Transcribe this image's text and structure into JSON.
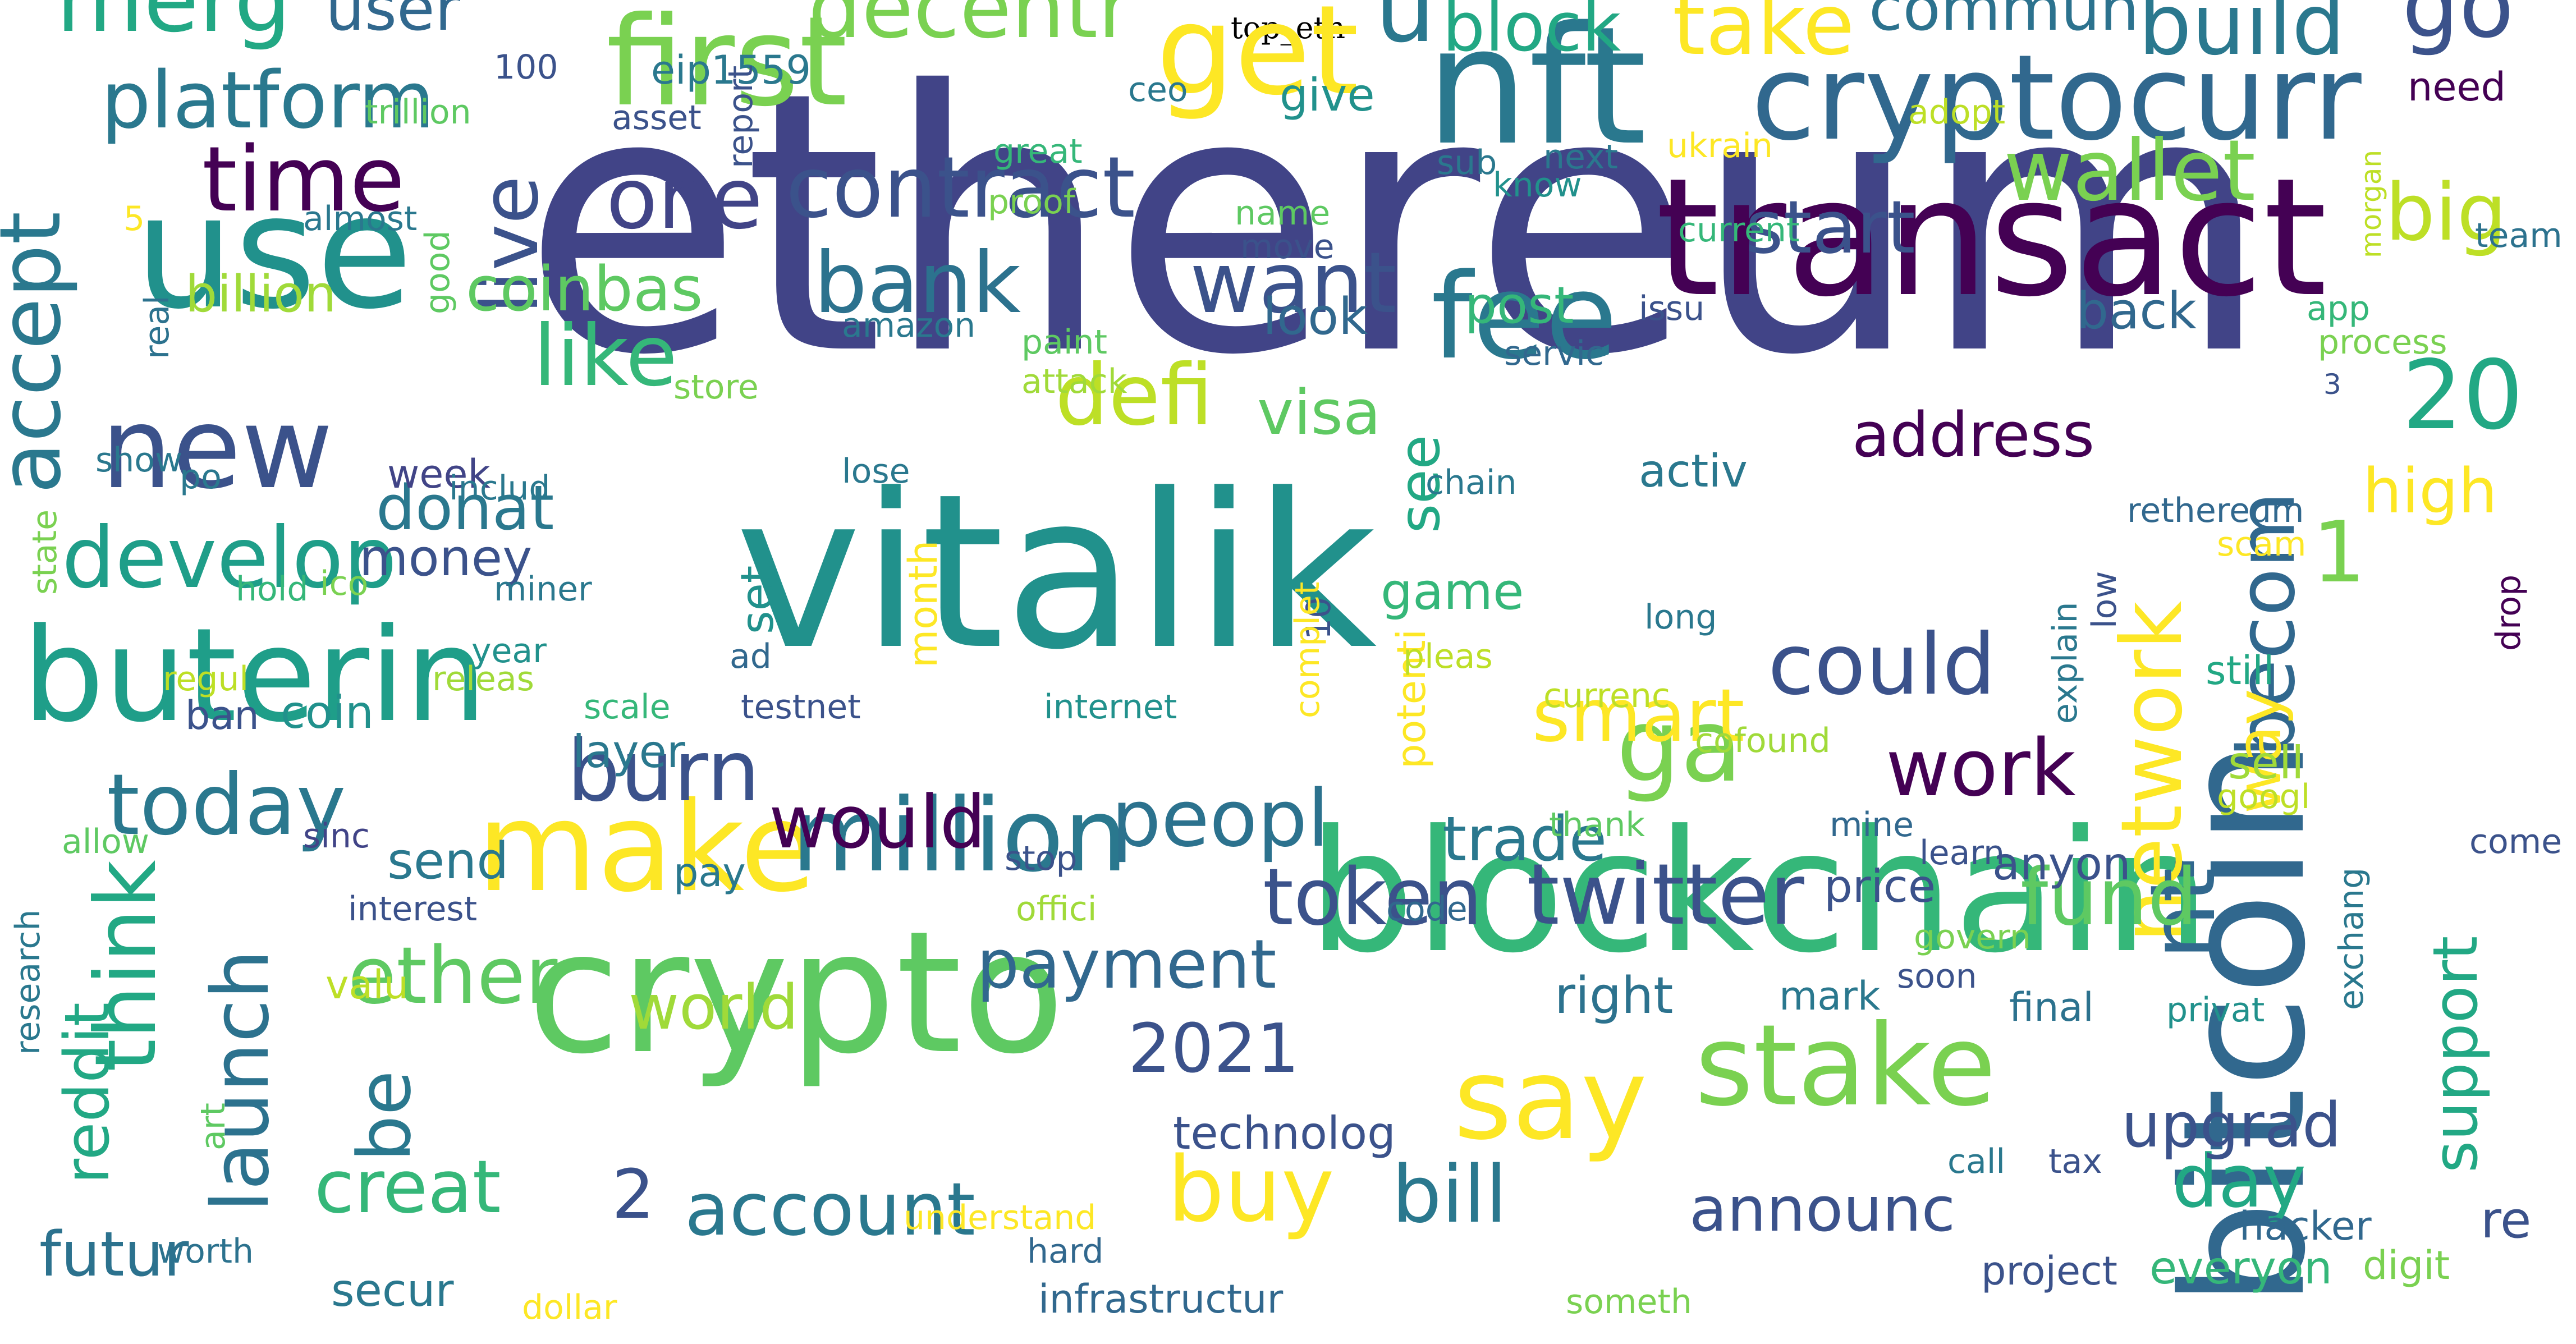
{
  "title": "top_eth",
  "palette": "viridis",
  "words": [
    {
      "text": "ethereum",
      "color": "#414487"
    },
    {
      "text": "vitalik",
      "color": "#21918c"
    },
    {
      "text": "transact",
      "color": "#440154"
    },
    {
      "text": "blockchain",
      "color": "#35b779"
    },
    {
      "text": "bitcoin",
      "color": "#31688e"
    },
    {
      "text": "nft",
      "color": "#2a788e"
    },
    {
      "text": "crypto",
      "color": "#5ec962"
    },
    {
      "text": "use",
      "color": "#21918c"
    },
    {
      "text": "buterin",
      "color": "#1f9e89"
    },
    {
      "text": "cryptocurr",
      "color": "#31688e"
    },
    {
      "text": "make",
      "color": "#fde725"
    },
    {
      "text": "first",
      "color": "#7ad151"
    },
    {
      "text": "get",
      "color": "#fde725"
    },
    {
      "text": "fee",
      "color": "#2a788e"
    },
    {
      "text": "new",
      "color": "#3b528b"
    },
    {
      "text": "say",
      "color": "#fde725"
    },
    {
      "text": "stake",
      "color": "#7ad151"
    },
    {
      "text": "million",
      "color": "#2a788e"
    },
    {
      "text": "merg",
      "color": "#22a884"
    },
    {
      "text": "ga",
      "color": "#7ad151"
    },
    {
      "text": "contract",
      "color": "#3b528b"
    },
    {
      "text": "one",
      "color": "#414487"
    },
    {
      "text": "platform",
      "color": "#2a788e"
    },
    {
      "text": "decentr",
      "color": "#7ad151"
    },
    {
      "text": "u",
      "color": "#2a788e"
    },
    {
      "text": "build",
      "color": "#2a788e"
    },
    {
      "text": "go",
      "color": "#3b528b"
    },
    {
      "text": "time",
      "color": "#440154"
    },
    {
      "text": "live",
      "color": "#3b528b"
    },
    {
      "text": "wallet",
      "color": "#7ad151"
    },
    {
      "text": "big",
      "color": "#bddf26"
    },
    {
      "text": "take",
      "color": "#fde725"
    },
    {
      "text": "commun",
      "color": "#2c728e"
    },
    {
      "text": "block",
      "color": "#22a884"
    },
    {
      "text": "user",
      "color": "#31688e"
    },
    {
      "text": "accept",
      "color": "#2a788e"
    },
    {
      "text": "bank",
      "color": "#2c728e"
    },
    {
      "text": "want",
      "color": "#3b528b"
    },
    {
      "text": "start",
      "color": "#3b528b"
    },
    {
      "text": "20",
      "color": "#22a884"
    },
    {
      "text": "like",
      "color": "#35b779"
    },
    {
      "text": "coinbas",
      "color": "#5ec962"
    },
    {
      "text": "billion",
      "color": "#a0da39"
    },
    {
      "text": "defi",
      "color": "#bddf26"
    },
    {
      "text": "visa",
      "color": "#5ec962"
    },
    {
      "text": "address",
      "color": "#440154"
    },
    {
      "text": "develop",
      "color": "#1f9e89"
    },
    {
      "text": "today",
      "color": "#2a788e"
    },
    {
      "text": "could",
      "color": "#3b528b"
    },
    {
      "text": "work",
      "color": "#440154"
    },
    {
      "text": "network",
      "color": "#fde725"
    },
    {
      "text": "nt",
      "color": "#31688e"
    },
    {
      "text": "becom",
      "color": "#31688e"
    },
    {
      "text": "1",
      "color": "#7ad151"
    },
    {
      "text": "high",
      "color": "#fde725"
    },
    {
      "text": "smart",
      "color": "#fde725"
    },
    {
      "text": "burn",
      "color": "#3b528b"
    },
    {
      "text": "would",
      "color": "#440154"
    },
    {
      "text": "peopl",
      "color": "#2c728e"
    },
    {
      "text": "trade",
      "color": "#2a788e"
    },
    {
      "text": "twitter",
      "color": "#3b528b"
    },
    {
      "text": "fund",
      "color": "#5ec962"
    },
    {
      "text": "token",
      "color": "#3b528b"
    },
    {
      "text": "think",
      "color": "#22a884"
    },
    {
      "text": "launch",
      "color": "#2c728e"
    },
    {
      "text": "ether",
      "color": "#5ec962"
    },
    {
      "text": "world",
      "color": "#a0da39"
    },
    {
      "text": "payment",
      "color": "#31688e"
    },
    {
      "text": "2021",
      "color": "#3b528b"
    },
    {
      "text": "be",
      "color": "#2a788e"
    },
    {
      "text": "creat",
      "color": "#35b779"
    },
    {
      "text": "2",
      "color": "#3b528b"
    },
    {
      "text": "account",
      "color": "#2a788e"
    },
    {
      "text": "buy",
      "color": "#fde725"
    },
    {
      "text": "bill",
      "color": "#2a788e"
    },
    {
      "text": "announc",
      "color": "#3b528b"
    },
    {
      "text": "day",
      "color": "#22a884"
    },
    {
      "text": "upgrad",
      "color": "#3b528b"
    },
    {
      "text": "support",
      "color": "#22a884"
    },
    {
      "text": "futur",
      "color": "#2c728e"
    },
    {
      "text": "reddit",
      "color": "#22a884"
    },
    {
      "text": "donat",
      "color": "#2a788e"
    },
    {
      "text": "money",
      "color": "#3b528b"
    },
    {
      "text": "week",
      "color": "#414487"
    },
    {
      "text": "send",
      "color": "#2a788e"
    },
    {
      "text": "coin",
      "color": "#21918c"
    },
    {
      "text": "layer",
      "color": "#2a788e"
    },
    {
      "text": "see",
      "color": "#22a884"
    },
    {
      "text": "post",
      "color": "#35b779"
    },
    {
      "text": "look",
      "color": "#31688e"
    },
    {
      "text": "back",
      "color": "#31688e"
    },
    {
      "text": "activ",
      "color": "#2a788e"
    },
    {
      "text": "game",
      "color": "#35b779"
    },
    {
      "text": "month",
      "color": "#fde725"
    },
    {
      "text": "technolog",
      "color": "#3b528b"
    },
    {
      "text": "way",
      "color": "#fde725"
    },
    {
      "text": "sell",
      "color": "#a0da39"
    },
    {
      "text": "price",
      "color": "#3b528b"
    },
    {
      "text": "anyon",
      "color": "#3b528b"
    },
    {
      "text": "right",
      "color": "#2c728e"
    },
    {
      "text": "mark",
      "color": "#2a788e"
    },
    {
      "text": "everyon",
      "color": "#35b779"
    },
    {
      "text": "project",
      "color": "#3b528b"
    },
    {
      "text": "digit",
      "color": "#7ad151"
    },
    {
      "text": "re",
      "color": "#3b528b"
    },
    {
      "text": "hacker",
      "color": "#31688e"
    },
    {
      "text": "understand",
      "color": "#fde725"
    },
    {
      "text": "hard",
      "color": "#31688e"
    },
    {
      "text": "infrastructur",
      "color": "#31688e"
    },
    {
      "text": "someth",
      "color": "#7ad151"
    },
    {
      "text": "dollar",
      "color": "#fde725"
    },
    {
      "text": "secur",
      "color": "#2a788e"
    },
    {
      "text": "worth",
      "color": "#2c728e"
    },
    {
      "text": "art",
      "color": "#5ec962"
    },
    {
      "text": "valu",
      "color": "#bddf26"
    },
    {
      "text": "research",
      "color": "#2a788e"
    },
    {
      "text": "interest",
      "color": "#3b528b"
    },
    {
      "text": "allow",
      "color": "#5ec962"
    },
    {
      "text": "sinc",
      "color": "#414487"
    },
    {
      "text": "stop",
      "color": "#3b528b"
    },
    {
      "text": "offici",
      "color": "#a0da39"
    },
    {
      "text": "code",
      "color": "#31688e"
    },
    {
      "text": "pay",
      "color": "#2a788e"
    },
    {
      "text": "ban",
      "color": "#3b528b"
    },
    {
      "text": "regul",
      "color": "#bddf26"
    },
    {
      "text": "releas",
      "color": "#a0da39"
    },
    {
      "text": "scale",
      "color": "#35b779"
    },
    {
      "text": "testnet",
      "color": "#3b528b"
    },
    {
      "text": "internet",
      "color": "#21918c"
    },
    {
      "text": "currenc",
      "color": "#bddf26"
    },
    {
      "text": "thank",
      "color": "#5ec962"
    },
    {
      "text": "cofound",
      "color": "#a0da39"
    },
    {
      "text": "mine",
      "color": "#31688e"
    },
    {
      "text": "learn",
      "color": "#3b528b"
    },
    {
      "text": "govern",
      "color": "#7ad151"
    },
    {
      "text": "soon",
      "color": "#3b528b"
    },
    {
      "text": "final",
      "color": "#2c728e"
    },
    {
      "text": "privat",
      "color": "#21918c"
    },
    {
      "text": "exchang",
      "color": "#2a788e"
    },
    {
      "text": "call",
      "color": "#2a788e"
    },
    {
      "text": "tax",
      "color": "#3b528b"
    },
    {
      "text": "googl",
      "color": "#bddf26"
    },
    {
      "text": "still",
      "color": "#22a884"
    },
    {
      "text": "drop",
      "color": "#440154"
    },
    {
      "text": "low",
      "color": "#3b528b"
    },
    {
      "text": "explain",
      "color": "#2a788e"
    },
    {
      "text": "scam",
      "color": "#fde725"
    },
    {
      "text": "come",
      "color": "#3b528b"
    },
    {
      "text": "team",
      "color": "#2c728e"
    },
    {
      "text": "process",
      "color": "#7ad151"
    },
    {
      "text": "3",
      "color": "#3b528b"
    },
    {
      "text": "app",
      "color": "#35b779"
    },
    {
      "text": "morgan",
      "color": "#bddf26"
    },
    {
      "text": "need",
      "color": "#440154"
    },
    {
      "text": "adopt",
      "color": "#bddf26"
    },
    {
      "text": "rethereum",
      "color": "#31688e"
    },
    {
      "text": "chain",
      "color": "#2a788e"
    },
    {
      "text": "lose",
      "color": "#2a788e"
    },
    {
      "text": "servic",
      "color": "#31688e"
    },
    {
      "text": "issu",
      "color": "#3b528b"
    },
    {
      "text": "current",
      "color": "#35b779"
    },
    {
      "text": "ukrain",
      "color": "#fde725"
    },
    {
      "text": "know",
      "color": "#21918c"
    },
    {
      "text": "sub",
      "color": "#2a788e"
    },
    {
      "text": "next",
      "color": "#2a788e"
    },
    {
      "text": "give",
      "color": "#21918c"
    },
    {
      "text": "ceo",
      "color": "#2a788e"
    },
    {
      "text": "great",
      "color": "#35b779"
    },
    {
      "text": "proof",
      "color": "#7ad151"
    },
    {
      "text": "name",
      "color": "#5ec962"
    },
    {
      "text": "move",
      "color": "#3b528b"
    },
    {
      "text": "paint",
      "color": "#5ec962"
    },
    {
      "text": "attack",
      "color": "#a0da39"
    },
    {
      "text": "store",
      "color": "#7ad151"
    },
    {
      "text": "amazon",
      "color": "#2a788e"
    },
    {
      "text": "100",
      "color": "#3b528b"
    },
    {
      "text": "eip1559",
      "color": "#2a788e"
    },
    {
      "text": "asset",
      "color": "#3b528b"
    },
    {
      "text": "trillion",
      "color": "#5ec962"
    },
    {
      "text": "report",
      "color": "#3b528b"
    },
    {
      "text": "5",
      "color": "#fde725"
    },
    {
      "text": "almost",
      "color": "#2a788e"
    },
    {
      "text": "good",
      "color": "#5ec962"
    },
    {
      "text": "real",
      "color": "#2c728e"
    },
    {
      "text": "show",
      "color": "#2a788e"
    },
    {
      "text": "po",
      "color": "#2a788e"
    },
    {
      "text": "includ",
      "color": "#2a788e"
    },
    {
      "text": "state",
      "color": "#7ad151"
    },
    {
      "text": "hold",
      "color": "#35b779"
    },
    {
      "text": "miner",
      "color": "#2a788e"
    },
    {
      "text": "ico",
      "color": "#7ad151"
    },
    {
      "text": "year",
      "color": "#21918c"
    },
    {
      "text": "set",
      "color": "#21918c"
    },
    {
      "text": "ad",
      "color": "#31688e"
    },
    {
      "text": "10",
      "color": "#3b528b"
    },
    {
      "text": "complet",
      "color": "#fde725"
    },
    {
      "text": "potenti",
      "color": "#fde725"
    },
    {
      "text": "pleas",
      "color": "#bddf26"
    },
    {
      "text": "long",
      "color": "#2a788e"
    },
    {
      "text": "ve",
      "color": "#2a788e"
    }
  ]
}
